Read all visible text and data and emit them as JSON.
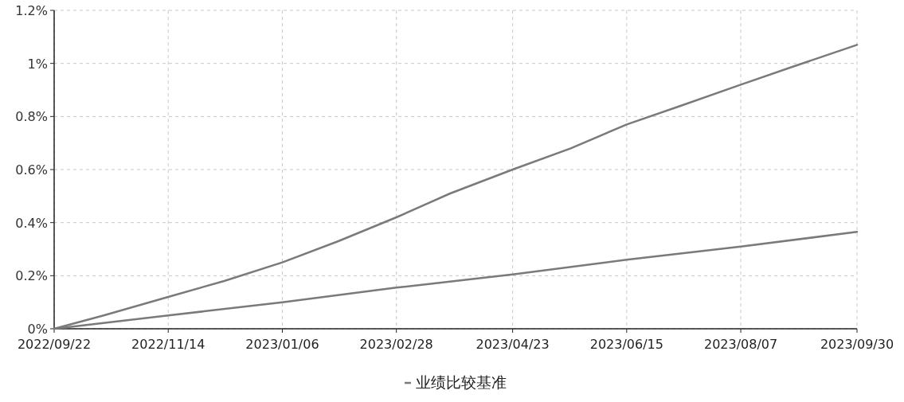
{
  "chart_data": {
    "type": "line",
    "x": [
      "2022-09-22",
      "2022-10-15",
      "2022-11-14",
      "2022-12-10",
      "2023-01-06",
      "2023-02-01",
      "2023-02-28",
      "2023-03-25",
      "2023-04-23",
      "2023-05-20",
      "2023-06-15",
      "2023-07-10",
      "2023-08-07",
      "2023-09-01",
      "2023-09-30"
    ],
    "series": [
      {
        "color": "#7a7a7a",
        "values": [
          0,
          0.05,
          0.12,
          0.18,
          0.25,
          0.33,
          0.42,
          0.51,
          0.6,
          0.68,
          0.77,
          0.84,
          0.92,
          0.99,
          1.07
        ]
      },
      {
        "name": "业绩比较基准",
        "color": "#7a7a7a",
        "x": [
          "2022-09-22",
          "2022-11-14",
          "2023-01-06",
          "2023-02-28",
          "2023-04-23",
          "2023-06-15",
          "2023-08-07",
          "2023-09-30"
        ],
        "values": [
          0,
          0.05,
          0.1,
          0.155,
          0.205,
          0.26,
          0.31,
          0.365
        ]
      }
    ],
    "xlim": [
      "2022-09-22",
      "2023-09-30"
    ],
    "xticks": [
      {
        "value": "2022-09-22",
        "label": "2022/09/22"
      },
      {
        "value": "2022-11-14",
        "label": "2022/11/14"
      },
      {
        "value": "2023-01-06",
        "label": "2023/01/06"
      },
      {
        "value": "2023-02-28",
        "label": "2023/02/28"
      },
      {
        "value": "2023-04-23",
        "label": "2023/04/23"
      },
      {
        "value": "2023-06-15",
        "label": "2023/06/15"
      },
      {
        "value": "2023-08-07",
        "label": "2023/08/07"
      },
      {
        "value": "2023-09-30",
        "label": "2023/09/30"
      }
    ],
    "ylim": [
      0,
      1.2
    ],
    "yticks": [
      {
        "value": 0,
        "label": "0%"
      },
      {
        "value": 0.2,
        "label": "0.2%"
      },
      {
        "value": 0.4,
        "label": "0.4%"
      },
      {
        "value": 0.6,
        "label": "0.6%"
      },
      {
        "value": 0.8,
        "label": "0.8%"
      },
      {
        "value": 1,
        "label": "1%"
      },
      {
        "value": 1.2,
        "label": "1.2%"
      }
    ],
    "grid": true,
    "legend": "bottom",
    "marker": "none",
    "line_style": "solid"
  }
}
